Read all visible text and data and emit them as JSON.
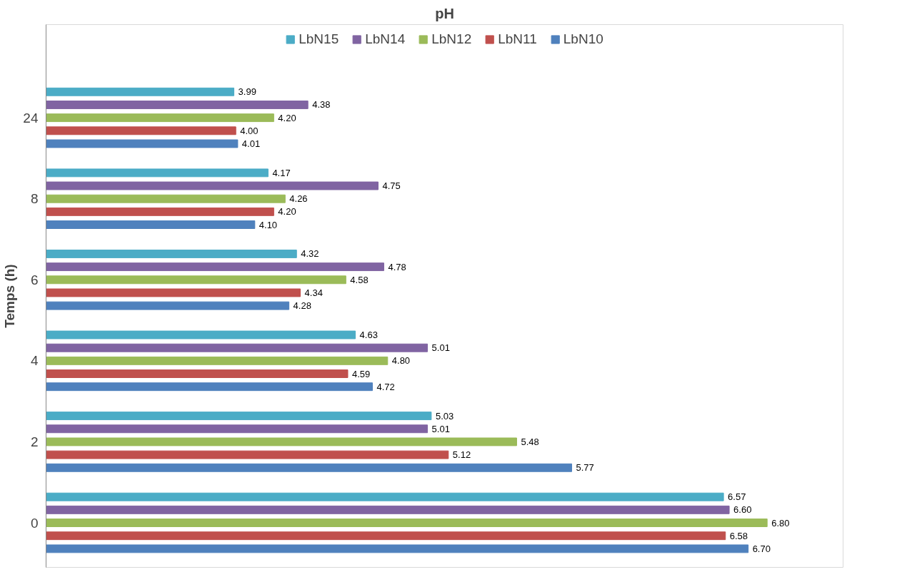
{
  "chart_data": {
    "type": "bar",
    "orientation": "horizontal",
    "title": "pH",
    "ylabel": "Temps (h)",
    "categories": [
      "24",
      "8",
      "6",
      "4",
      "2",
      "0"
    ],
    "xlim": [
      3,
      7.2
    ],
    "tick_labels": "y",
    "grid": false,
    "legend": "top",
    "series": [
      {
        "name": "LbN15",
        "color": "#4bacc6",
        "values": [
          3.99,
          4.17,
          4.32,
          4.63,
          5.03,
          6.57
        ],
        "value_labels": [
          "3.99",
          "4.17",
          "4.32",
          "4.63",
          "5.03",
          "6.57"
        ]
      },
      {
        "name": "LbN14",
        "color": "#8064a2",
        "values": [
          4.38,
          4.75,
          4.78,
          5.01,
          5.01,
          6.6
        ],
        "value_labels": [
          "4.38",
          "4.75",
          "4.78",
          "5.01",
          "5.01",
          "6.60"
        ]
      },
      {
        "name": "LbN12",
        "color": "#9bbb59",
        "values": [
          4.2,
          4.26,
          4.58,
          4.8,
          5.48,
          6.8
        ],
        "value_labels": [
          "4.20",
          "4.26",
          "4.58",
          "4.80",
          "5.48",
          "6.80"
        ]
      },
      {
        "name": "LbN11",
        "color": "#c0504d",
        "values": [
          4.0,
          4.2,
          4.34,
          4.59,
          5.12,
          6.58
        ],
        "value_labels": [
          "4.00",
          "4.20",
          "4.34",
          "4.59",
          "5.12",
          "6.58"
        ]
      },
      {
        "name": "LbN10",
        "color": "#4f81bd",
        "values": [
          4.01,
          4.1,
          4.28,
          4.72,
          5.77,
          6.7
        ],
        "value_labels": [
          "4.01",
          "4.10",
          "4.28",
          "4.72",
          "5.77",
          "6.70"
        ]
      }
    ]
  }
}
